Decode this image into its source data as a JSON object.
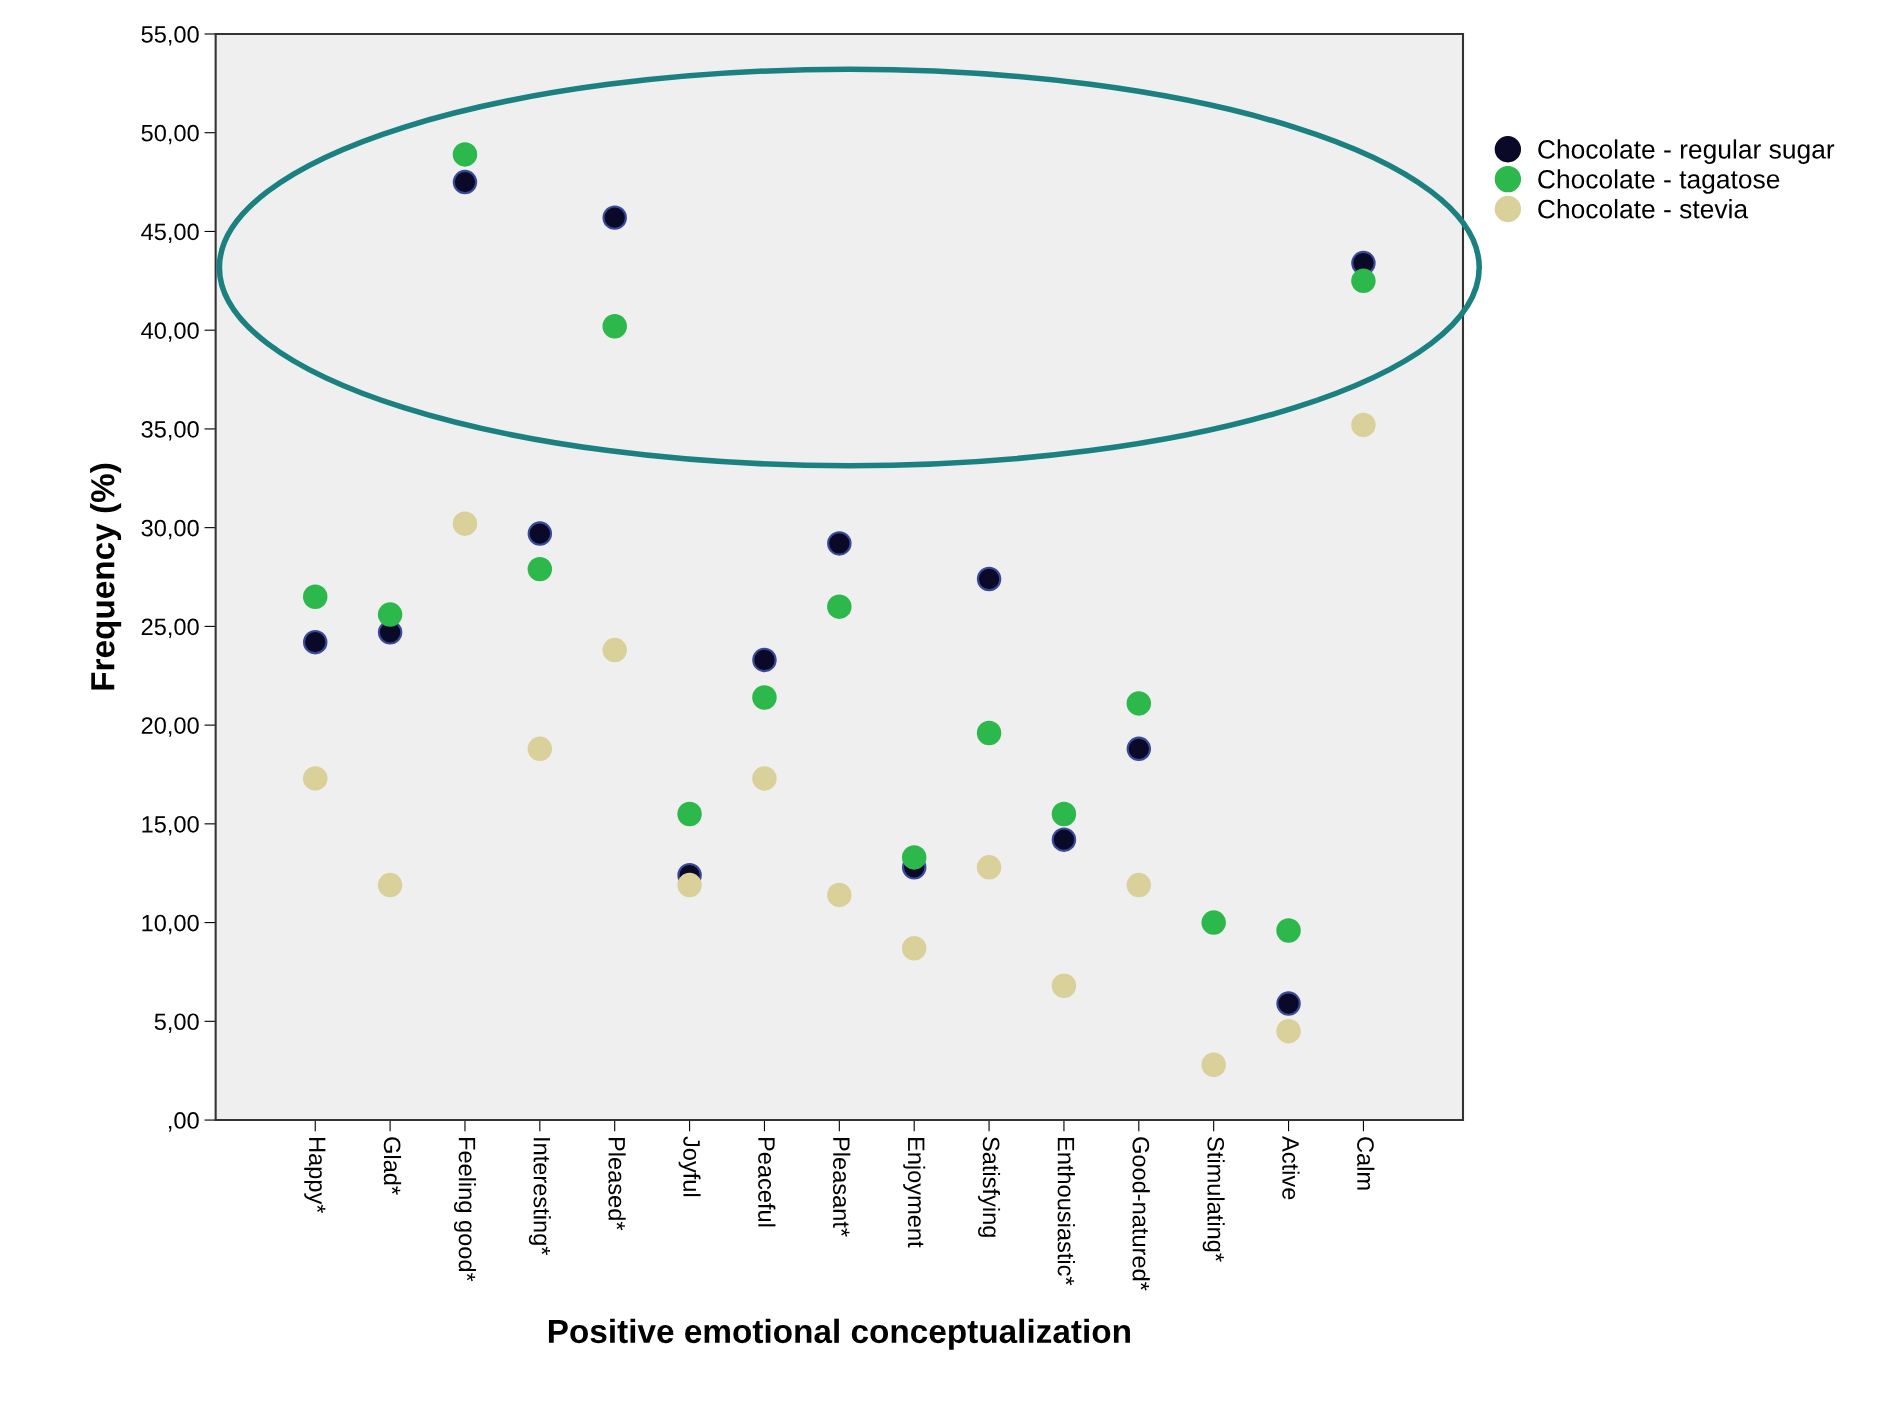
{
  "chart_data": {
    "type": "scatter",
    "xlabel": "Positive emotional conceptualization",
    "ylabel": "Frequency (%)",
    "categories": [
      "Happy*",
      "Glad*",
      "Feeling good*",
      "Interesting*",
      "Pleased*",
      "Joyful",
      "Peaceful",
      "Pleasant*",
      "Enjoyment",
      "Satisfying",
      "Enthousiastic*",
      "Good-natured*",
      "Stimulating*",
      "Active",
      "Calm"
    ],
    "series": [
      {
        "name": "Chocolate - regular sugar",
        "color": "#0a0a28",
        "values": [
          24.2,
          24.7,
          47.5,
          29.7,
          45.7,
          12.4,
          23.3,
          29.2,
          12.8,
          27.4,
          14.2,
          18.8,
          null,
          5.9,
          43.4
        ]
      },
      {
        "name": "Chocolate - tagatose",
        "color": "#2db84c",
        "values": [
          26.5,
          25.6,
          48.9,
          27.9,
          40.2,
          15.5,
          21.4,
          26.0,
          13.3,
          19.6,
          15.5,
          21.1,
          10.0,
          9.6,
          42.5
        ]
      },
      {
        "name": "Chocolate - stevia",
        "color": "#d9d09a",
        "values": [
          17.3,
          11.9,
          30.2,
          18.8,
          23.8,
          11.9,
          17.3,
          11.4,
          8.7,
          12.8,
          6.8,
          11.9,
          2.8,
          4.5,
          35.2
        ]
      }
    ],
    "ylim": [
      0,
      55
    ],
    "yticks": [
      {
        "value": 0,
        "label": ",00"
      },
      {
        "value": 5,
        "label": "5,00"
      },
      {
        "value": 10,
        "label": "10,00"
      },
      {
        "value": 15,
        "label": "15,00"
      },
      {
        "value": 20,
        "label": "20,00"
      },
      {
        "value": 25,
        "label": "25,00"
      },
      {
        "value": 30,
        "label": "30,00"
      },
      {
        "value": 35,
        "label": "35,00"
      },
      {
        "value": 40,
        "label": "40,00"
      },
      {
        "value": 45,
        "label": "45,00"
      },
      {
        "value": 50,
        "label": "50,00"
      },
      {
        "value": 55,
        "label": "55,00"
      }
    ],
    "marker": "circle",
    "grid": false,
    "legend": "top right"
  }
}
